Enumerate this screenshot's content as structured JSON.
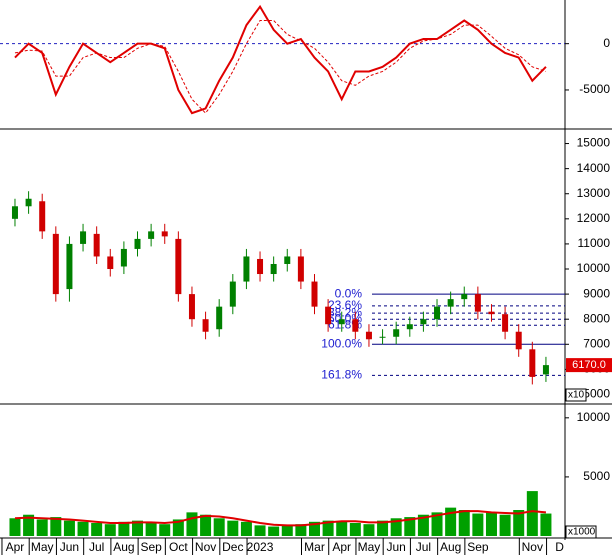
{
  "chart_data": [
    {
      "type": "line",
      "x": [
        0,
        0.5,
        1,
        1.5,
        2,
        2.5,
        3,
        3.5,
        4,
        4.5,
        5,
        5.5,
        6,
        6.5,
        7,
        7.5,
        8,
        8.5,
        9,
        9.5,
        10,
        10.5,
        11,
        11.5,
        12,
        12.5,
        13,
        13.5,
        14,
        14.5,
        15,
        15.5,
        16,
        16.5,
        17,
        17.5,
        18,
        18.5,
        19,
        19.5
      ],
      "series": [
        {
          "color": "#e00000",
          "dash": false,
          "values": [
            -1500,
            0,
            -1000,
            -5500,
            -2500,
            0,
            -1000,
            -2000,
            -1000,
            0,
            0,
            -500,
            -5000,
            -7500,
            -7000,
            -4000,
            -1500,
            2000,
            4000,
            1500,
            0,
            500,
            -1500,
            -3000,
            -6000,
            -3000,
            -3000,
            -2500,
            -1500,
            0,
            500,
            500,
            1500,
            2500,
            1500,
            0,
            -1000,
            -1500,
            -4000,
            -2500
          ]
        },
        {
          "color": "#e00000",
          "dash": true,
          "values": [
            -1000,
            -700,
            -800,
            -3500,
            -3500,
            -1500,
            -1000,
            -1500,
            -1500,
            -500,
            0,
            -300,
            -3000,
            -6000,
            -7500,
            -5500,
            -3000,
            0,
            2500,
            2500,
            1000,
            300,
            -500,
            -2000,
            -4000,
            -4500,
            -3500,
            -3000,
            -2000,
            -500,
            300,
            500,
            1000,
            2000,
            2000,
            800,
            -500,
            -1200,
            -2500,
            -3000
          ]
        }
      ],
      "reference_line": {
        "value": 0,
        "color": "#2020c0"
      },
      "ylim": [
        -9000,
        4500
      ],
      "yticks": [
        0,
        -5000
      ]
    },
    {
      "type": "candlestick",
      "x": [
        0,
        0.5,
        1,
        1.5,
        2,
        2.5,
        3,
        3.5,
        4,
        4.5,
        5,
        5.5,
        6,
        6.5,
        7,
        7.5,
        8,
        8.5,
        9,
        9.5,
        10,
        10.5,
        11,
        11.5,
        12,
        12.5,
        13,
        13.5,
        14,
        14.5,
        15,
        15.5,
        16,
        16.5,
        17,
        17.5,
        18,
        18.5,
        19,
        19.5
      ],
      "open": [
        12000,
        12500,
        12700,
        11400,
        9200,
        11000,
        11400,
        10500,
        10100,
        10800,
        11200,
        11500,
        11200,
        9000,
        8000,
        7600,
        8500,
        9500,
        10400,
        9800,
        10200,
        10500,
        9500,
        8500,
        7800,
        8000,
        7500,
        7300,
        7300,
        7600,
        7800,
        8000,
        8500,
        8800,
        9000,
        8300,
        8200,
        7500,
        6800,
        5800
      ],
      "high": [
        12800,
        13100,
        13000,
        11700,
        11300,
        11800,
        11700,
        10800,
        11100,
        11500,
        11800,
        11800,
        11500,
        9300,
        8300,
        8800,
        9800,
        10800,
        10700,
        10500,
        10800,
        10800,
        9800,
        8800,
        8300,
        8300,
        7800,
        7600,
        7900,
        8100,
        8300,
        8800,
        9100,
        9300,
        9300,
        8600,
        8500,
        7800,
        7100,
        6500
      ],
      "low": [
        11700,
        12200,
        11200,
        8700,
        8700,
        10700,
        10200,
        9700,
        9800,
        10500,
        10900,
        11000,
        8700,
        7700,
        7200,
        7300,
        8200,
        9200,
        9500,
        9500,
        9900,
        9200,
        8200,
        7500,
        7500,
        7200,
        6900,
        7000,
        7000,
        7300,
        7500,
        7700,
        8200,
        8500,
        8000,
        7900,
        7200,
        6500,
        5400,
        5500
      ],
      "close": [
        12500,
        12800,
        11500,
        9000,
        11000,
        11500,
        10500,
        10000,
        10800,
        11200,
        11500,
        11300,
        9000,
        8000,
        7500,
        8500,
        9500,
        10500,
        9800,
        10200,
        10500,
        9500,
        8500,
        7800,
        8000,
        7500,
        7200,
        7300,
        7600,
        7800,
        8000,
        8500,
        8800,
        9000,
        8300,
        8200,
        7500,
        6800,
        5700,
        6170
      ],
      "up_color": "#008000",
      "down_color": "#d00000",
      "fib": [
        {
          "level": 9000,
          "label": "0.0%",
          "style": "solid"
        },
        {
          "level": 8530,
          "label": "23.6%",
          "style": "dashed"
        },
        {
          "level": 8240,
          "label": "38.2%",
          "style": "dashed"
        },
        {
          "level": 8000,
          "label": "50.0%",
          "style": "dashed"
        },
        {
          "level": 7760,
          "label": "61.8%",
          "style": "dashed"
        },
        {
          "level": 7000,
          "label": "100.0%",
          "style": "solid"
        },
        {
          "level": 5760,
          "label": "161.8%",
          "style": "dashed"
        }
      ],
      "last_label": "6170.0",
      "unit_label": "x10",
      "ylim": [
        4700,
        15500
      ],
      "yticks": [
        5000,
        6000,
        7000,
        8000,
        9000,
        10000,
        11000,
        12000,
        13000,
        14000,
        15000
      ]
    },
    {
      "type": "bar",
      "x": [
        0,
        0.5,
        1,
        1.5,
        2,
        2.5,
        3,
        3.5,
        4,
        4.5,
        5,
        5.5,
        6,
        6.5,
        7,
        7.5,
        8,
        8.5,
        9,
        9.5,
        10,
        10.5,
        11,
        11.5,
        12,
        12.5,
        13,
        13.5,
        14,
        14.5,
        15,
        15.5,
        16,
        16.5,
        17,
        17.5,
        18,
        18.5,
        19,
        19.5
      ],
      "series": [
        {
          "color": "#00a000",
          "style": "bar",
          "values": [
            1500,
            1800,
            1400,
            1600,
            1300,
            1200,
            1100,
            1000,
            1200,
            1300,
            1100,
            1000,
            1400,
            2000,
            1800,
            1500,
            1300,
            1200,
            900,
            800,
            900,
            1000,
            1200,
            1300,
            1200,
            1100,
            1000,
            1300,
            1500,
            1600,
            1800,
            2000,
            2400,
            2200,
            1900,
            2000,
            1800,
            2200,
            3800,
            1900
          ]
        },
        {
          "color": "#e00000",
          "style": "line",
          "values": [
            1500,
            1550,
            1500,
            1450,
            1400,
            1300,
            1200,
            1100,
            1100,
            1150,
            1150,
            1100,
            1200,
            1500,
            1700,
            1650,
            1500,
            1300,
            1100,
            950,
            900,
            900,
            1000,
            1150,
            1250,
            1250,
            1150,
            1150,
            1250,
            1400,
            1550,
            1750,
            1950,
            2100,
            2100,
            2000,
            1950,
            1900,
            2100,
            2000
          ]
        }
      ],
      "unit_label": "x1000",
      "ylim": [
        0,
        11000
      ],
      "yticks": [
        5000,
        10000
      ],
      "xlim": [
        -0.55,
        20.2
      ],
      "xticks": [
        {
          "value": 0,
          "label": "Apr"
        },
        {
          "value": 1,
          "label": "May"
        },
        {
          "value": 2,
          "label": "Jun"
        },
        {
          "value": 3,
          "label": "Jul"
        },
        {
          "value": 4,
          "label": "Aug"
        },
        {
          "value": 5,
          "label": "Sep"
        },
        {
          "value": 6,
          "label": "Oct"
        },
        {
          "value": 7,
          "label": "Nov"
        },
        {
          "value": 8,
          "label": "Dec"
        },
        {
          "value": 9,
          "label": "2023"
        },
        {
          "value": 11,
          "label": "Mar"
        },
        {
          "value": 12,
          "label": "Apr"
        },
        {
          "value": 13,
          "label": "May"
        },
        {
          "value": 14,
          "label": "Jun"
        },
        {
          "value": 15,
          "label": "Jul"
        },
        {
          "value": 16,
          "label": "Aug"
        },
        {
          "value": 17,
          "label": "Sep"
        },
        {
          "value": 19,
          "label": "Nov"
        },
        {
          "value": 20,
          "label": "D"
        }
      ]
    }
  ]
}
